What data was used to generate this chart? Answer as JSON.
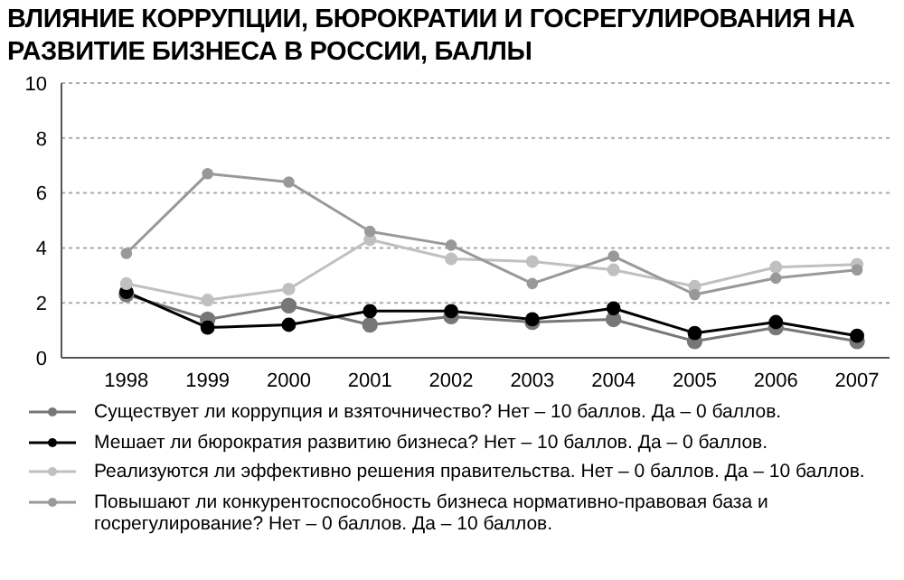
{
  "chart_data": {
    "type": "line",
    "title": "ВЛИЯНИЕ КОРРУПЦИИ, БЮРОКРАТИИ И ГОСРЕГУЛИРОВАНИЯ НА РАЗВИТИЕ БИЗНЕСА В РОССИИ, БАЛЛЫ",
    "categories": [
      "1998",
      "1999",
      "2000",
      "2001",
      "2002",
      "2003",
      "2004",
      "2005",
      "2006",
      "2007"
    ],
    "series": [
      {
        "name": "Существует ли коррупция и взяточничество? Нет – 10 баллов. Да – 0 баллов.",
        "color": "#777777",
        "values": [
          2.3,
          1.4,
          1.9,
          1.2,
          1.5,
          1.3,
          1.4,
          0.6,
          1.1,
          0.6
        ]
      },
      {
        "name": "Мешает ли бюрократия развитию бизнеса? Нет – 10 баллов. Да – 0 баллов.",
        "color": "#000000",
        "values": [
          2.4,
          1.1,
          1.2,
          1.7,
          1.7,
          1.4,
          1.8,
          0.9,
          1.3,
          0.8
        ]
      },
      {
        "name": "Реализуются ли эффективно решения правительства. Нет – 0 баллов. Да – 10 баллов.",
        "color": "#c0c0c0",
        "values": [
          2.7,
          2.1,
          2.5,
          4.3,
          3.6,
          3.5,
          3.2,
          2.6,
          3.3,
          3.4
        ]
      },
      {
        "name": "Повышают ли конкурентоспособность бизнеса нормативно-правовая база и госрегулирование? Нет – 0 баллов. Да – 10 баллов.",
        "color": "#999999",
        "values": [
          3.8,
          6.7,
          6.4,
          4.6,
          4.1,
          2.7,
          3.7,
          2.3,
          2.9,
          3.2
        ]
      }
    ],
    "ylim": [
      0,
      10
    ],
    "yticks": [
      0,
      2,
      4,
      6,
      8,
      10
    ],
    "grid": "y",
    "legend": "bottom",
    "marker": "circle",
    "line_style": "solid"
  }
}
